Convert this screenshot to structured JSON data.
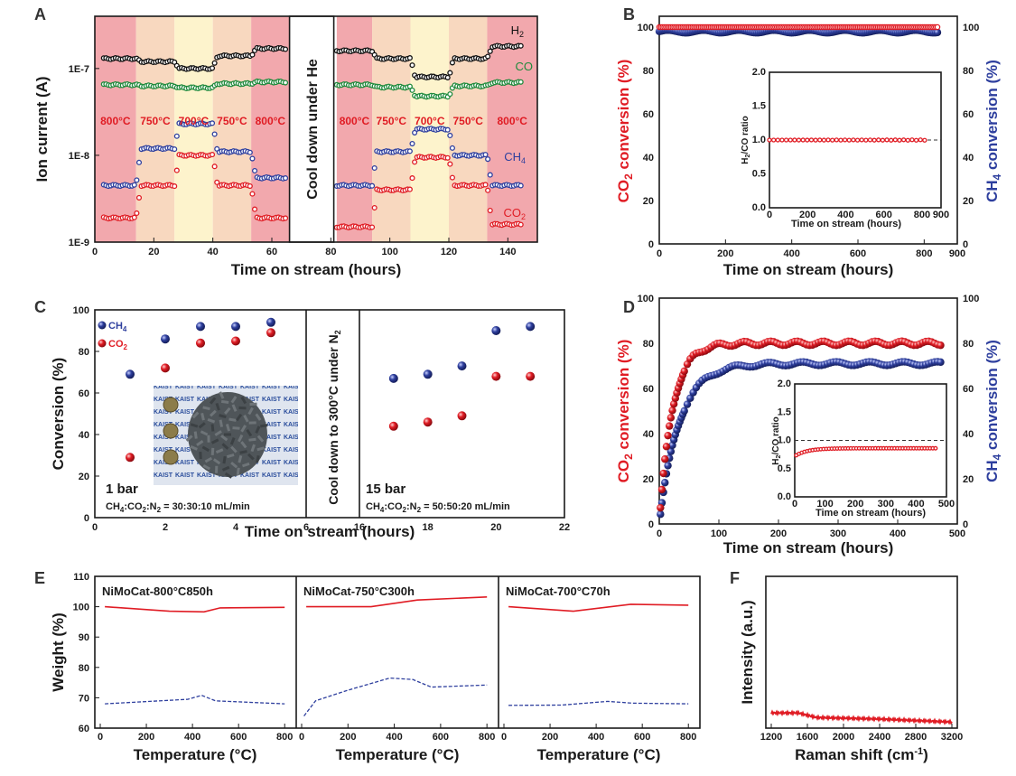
{
  "colors": {
    "red": "#e01c24",
    "blue": "#2e3f9e",
    "black": "#111111",
    "green": "#1f8a3c",
    "band_red": "#f2a8ad",
    "band_orange": "#f8d8bf",
    "band_yellow": "#fdf3cc",
    "sheet": "#cfd7e6"
  },
  "panel_A": {
    "letter": "A",
    "ylabel": "Ion current (A)",
    "xlabel": "Time on stream (hours)",
    "divider_text": "Cool down under He",
    "yticks": [
      "1E-9",
      "1E-8",
      "1E-7"
    ],
    "xticks": [
      "0",
      "20",
      "40",
      "60",
      "80",
      "100",
      "120",
      "140"
    ],
    "temp_labels": [
      "800°C",
      "750°C",
      "700°C",
      "750°C",
      "800°C"
    ],
    "species": [
      "H2",
      "CO",
      "CH4",
      "CO2"
    ],
    "chart_data": {
      "type": "scatter",
      "yscale": "log",
      "xlim": [
        0,
        150
      ],
      "ylim": [
        1e-09,
        4e-07
      ],
      "segments": [
        {
          "x": [
            3,
            65
          ],
          "bands": [
            [
              3,
              14,
              "800"
            ],
            [
              14,
              27,
              "750"
            ],
            [
              27,
              40,
              "700"
            ],
            [
              40,
              53,
              "750"
            ],
            [
              53,
              65,
              "800"
            ]
          ],
          "series": {
            "H2": [
              1.3e-07,
              1.2e-07,
              1e-07,
              1.4e-07,
              1.7e-07
            ],
            "CO": [
              6.5e-08,
              6.3e-08,
              6e-08,
              6.7e-08,
              7e-08
            ],
            "CH4": [
              4.5e-09,
              1.2e-08,
              2.3e-08,
              1.1e-08,
              5.5e-09
            ],
            "CO2": [
              1.9e-09,
              4.5e-09,
              1e-08,
              4.5e-09,
              1.9e-09
            ]
          }
        },
        {
          "x": [
            82,
            145
          ],
          "bands": [
            [
              82,
              94,
              "800"
            ],
            [
              94,
              107,
              "750"
            ],
            [
              107,
              120,
              "700"
            ],
            [
              120,
              133,
              "750"
            ],
            [
              133,
              145,
              "800"
            ]
          ],
          "series": {
            "H2": [
              1.6e-07,
              1.3e-07,
              8e-08,
              1.3e-07,
              1.8e-07
            ],
            "CO": [
              6.5e-08,
              6.1e-08,
              4.8e-08,
              6.3e-08,
              6.9e-08
            ],
            "CH4": [
              4.5e-09,
              1.1e-08,
              2e-08,
              1e-08,
              4.5e-09
            ],
            "CO2": [
              1.5e-09,
              4e-09,
              9.5e-09,
              4.5e-09,
              1.6e-09
            ]
          }
        }
      ]
    }
  },
  "panel_B": {
    "letter": "B",
    "ylabel_left": "CO2 conversion (%)",
    "ylabel_right": "CH4 conversion (%)",
    "xlabel": "Time on stream (hours)",
    "yticks": [
      "0",
      "20",
      "40",
      "60",
      "80",
      "100"
    ],
    "xticks": [
      "0",
      "200",
      "400",
      "600",
      "800",
      "900"
    ],
    "inset": {
      "ylabel": "H2/CO ratio",
      "xlabel": "Time on stream (hours)",
      "yticks": [
        "0.0",
        "0.5",
        "1.0",
        "1.5",
        "2.0"
      ],
      "xticks": [
        "0",
        "200",
        "400",
        "600",
        "800",
        "900"
      ]
    },
    "chart_data": {
      "type": "scatter",
      "xlim": [
        0,
        900
      ],
      "ylim": [
        0,
        105
      ],
      "series": [
        {
          "name": "CO2",
          "value": 100
        },
        {
          "name": "CH4",
          "value": 98
        }
      ],
      "inset": {
        "xlim": [
          0,
          900
        ],
        "ylim": [
          0,
          2
        ],
        "value": 1.0
      }
    }
  },
  "panel_C": {
    "letter": "C",
    "ylabel": "Conversion (%)",
    "xlabel": "Time on stream (hours)",
    "divider_text": "Cool down to 300°C under N2",
    "legend": [
      "CH4",
      "CO2"
    ],
    "yticks": [
      "0",
      "20",
      "40",
      "60",
      "80",
      "100"
    ],
    "xticks_left": [
      "0",
      "2",
      "4",
      "6"
    ],
    "xticks_right": [
      "16",
      "18",
      "20",
      "22"
    ],
    "note_left_title": "1 bar",
    "note_left": "CH4:CO2:N2 = 30:30:10 mL/min",
    "note_right_title": "15 bar",
    "note_right": "CH4:CO2:N2 = 50:50:20 mL/min",
    "sheet_label": "KAIST",
    "chart_data": {
      "type": "scatter",
      "ylim": [
        0,
        100
      ],
      "left": {
        "xlim": [
          0,
          6
        ],
        "x": [
          1,
          2,
          3,
          4,
          5
        ],
        "CH4": [
          69,
          86,
          92,
          92,
          94
        ],
        "CO2": [
          29,
          72,
          84,
          85,
          89
        ]
      },
      "right": {
        "xlim": [
          16,
          22
        ],
        "x": [
          17,
          18,
          19,
          20,
          21
        ],
        "CH4": [
          67,
          69,
          73,
          90,
          92
        ],
        "CO2": [
          44,
          46,
          49,
          68,
          68
        ]
      }
    }
  },
  "panel_D": {
    "letter": "D",
    "ylabel_left": "CO2 conversion (%)",
    "ylabel_right": "CH4 conversion (%)",
    "xlabel": "Time on stream (hours)",
    "yticks": [
      "0",
      "20",
      "40",
      "60",
      "80",
      "100"
    ],
    "xticks": [
      "0",
      "100",
      "200",
      "300",
      "400",
      "500"
    ],
    "inset": {
      "ylabel": "H2/CO ratio",
      "xlabel": "Time on stream (hours)",
      "yticks": [
        "0.0",
        "0.5",
        "1.0",
        "1.5",
        "2.0"
      ],
      "xticks": [
        "0",
        "100",
        "200",
        "300",
        "400",
        "500"
      ]
    },
    "chart_data": {
      "type": "scatter",
      "xlim": [
        0,
        500
      ],
      "ylim": [
        0,
        100
      ],
      "CO2": {
        "final": 80,
        "k": 0.045
      },
      "CH4": {
        "final": 71,
        "k": 0.03
      },
      "inset": {
        "xlim": [
          0,
          500
        ],
        "ylim": [
          0,
          2
        ],
        "start": 0.72,
        "final": 0.86
      }
    }
  },
  "panel_E": {
    "letter": "E",
    "ylabel": "Weight (%)",
    "xlabel": "Temperature (°C)",
    "yticks": [
      "60",
      "70",
      "80",
      "90",
      "100",
      "110"
    ],
    "titles": [
      "NiMoCat-800°C850h",
      "NiMoCat-750°C300h",
      "NiMoCat-700°C70h"
    ],
    "xticks": [
      "0",
      "200",
      "400",
      "600",
      "800"
    ],
    "chart_data": {
      "type": "line",
      "ylim": [
        60,
        110
      ],
      "xlim": [
        0,
        850
      ],
      "subplots": [
        {
          "weight": [
            [
              20,
              100
            ],
            [
              300,
              98.5
            ],
            [
              450,
              98.3
            ],
            [
              520,
              99.6
            ],
            [
              800,
              99.8
            ]
          ],
          "dashed": [
            [
              20,
              68
            ],
            [
              380,
              69.5
            ],
            [
              440,
              70.8
            ],
            [
              500,
              69
            ],
            [
              800,
              68
            ]
          ]
        },
        {
          "weight": [
            [
              20,
              100
            ],
            [
              300,
              100
            ],
            [
              500,
              102.2
            ],
            [
              800,
              103.2
            ]
          ],
          "dashed": [
            [
              10,
              64
            ],
            [
              60,
              69
            ],
            [
              200,
              72.5
            ],
            [
              380,
              76.5
            ],
            [
              480,
              76
            ],
            [
              560,
              73.5
            ],
            [
              800,
              74.2
            ]
          ]
        },
        {
          "weight": [
            [
              20,
              100
            ],
            [
              300,
              98.5
            ],
            [
              550,
              100.8
            ],
            [
              800,
              100.5
            ]
          ],
          "dashed": [
            [
              20,
              67.5
            ],
            [
              250,
              67.6
            ],
            [
              450,
              68.8
            ],
            [
              560,
              68.2
            ],
            [
              800,
              68
            ]
          ]
        }
      ]
    }
  },
  "panel_F": {
    "letter": "F",
    "ylabel": "Intensity (a.u.)",
    "xlabel": "Raman shift (cm-1)",
    "xticks": [
      "1200",
      "1600",
      "2000",
      "2400",
      "2800",
      "3200"
    ],
    "chart_data": {
      "type": "line",
      "xlim": [
        1200,
        3200
      ],
      "series": [
        [
          1200,
          0.1
        ],
        [
          1500,
          0.1
        ],
        [
          1700,
          0.07
        ],
        [
          2400,
          0.06
        ],
        [
          3200,
          0.04
        ]
      ]
    }
  }
}
